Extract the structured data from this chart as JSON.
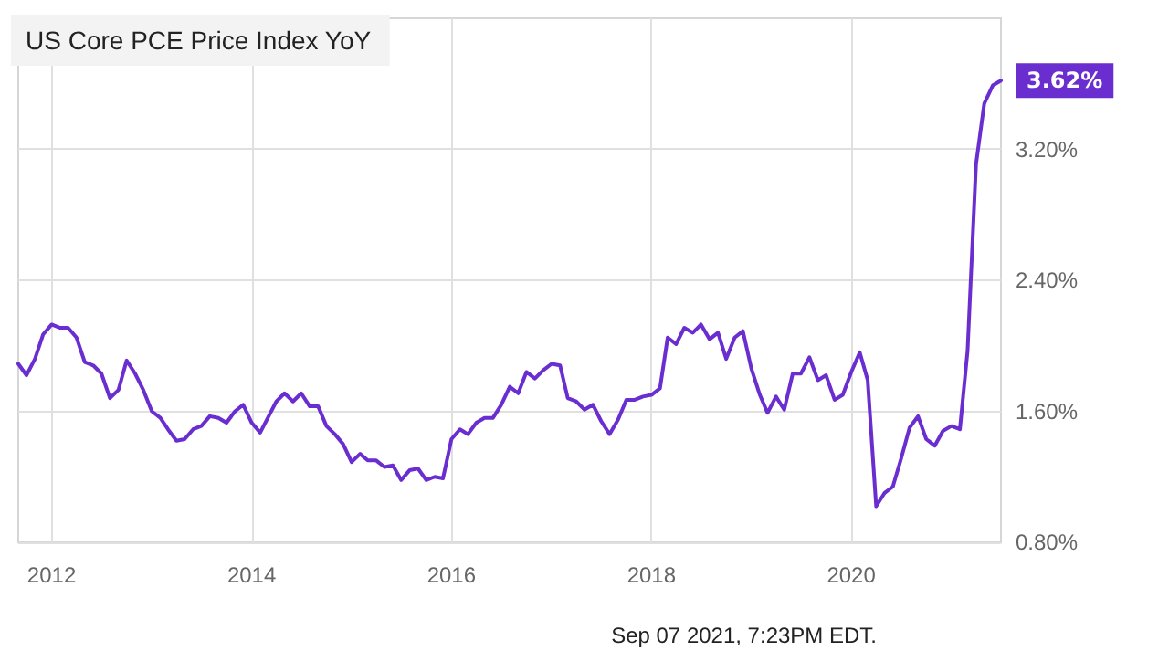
{
  "chart_data": {
    "type": "line",
    "title": "US Core PCE Price Index YoY",
    "annotations": [
      "Sep 07 2021, 7:23PM EDT."
    ],
    "x": [
      "2011-09",
      "2011-10",
      "2011-11",
      "2011-12",
      "2012-01",
      "2012-02",
      "2012-03",
      "2012-04",
      "2012-05",
      "2012-06",
      "2012-07",
      "2012-08",
      "2012-09",
      "2012-10",
      "2012-11",
      "2012-12",
      "2013-01",
      "2013-02",
      "2013-03",
      "2013-04",
      "2013-05",
      "2013-06",
      "2013-07",
      "2013-08",
      "2013-09",
      "2013-10",
      "2013-11",
      "2013-12",
      "2014-01",
      "2014-02",
      "2014-03",
      "2014-04",
      "2014-05",
      "2014-06",
      "2014-07",
      "2014-08",
      "2014-09",
      "2014-10",
      "2014-11",
      "2014-12",
      "2015-01",
      "2015-02",
      "2015-03",
      "2015-04",
      "2015-05",
      "2015-06",
      "2015-07",
      "2015-08",
      "2015-09",
      "2015-10",
      "2015-11",
      "2015-12",
      "2016-01",
      "2016-02",
      "2016-03",
      "2016-04",
      "2016-05",
      "2016-06",
      "2016-07",
      "2016-08",
      "2016-09",
      "2016-10",
      "2016-11",
      "2016-12",
      "2017-01",
      "2017-02",
      "2017-03",
      "2017-04",
      "2017-05",
      "2017-06",
      "2017-07",
      "2017-08",
      "2017-09",
      "2017-10",
      "2017-11",
      "2017-12",
      "2018-01",
      "2018-02",
      "2018-03",
      "2018-04",
      "2018-05",
      "2018-06",
      "2018-07",
      "2018-08",
      "2018-09",
      "2018-10",
      "2018-11",
      "2018-12",
      "2019-01",
      "2019-02",
      "2019-03",
      "2019-04",
      "2019-05",
      "2019-06",
      "2019-07",
      "2019-08",
      "2019-09",
      "2019-10",
      "2019-11",
      "2019-12",
      "2020-01",
      "2020-02",
      "2020-03",
      "2020-04",
      "2020-05",
      "2020-06",
      "2020-07",
      "2020-08",
      "2020-09",
      "2020-10",
      "2020-11",
      "2020-12",
      "2021-01",
      "2021-02",
      "2021-03",
      "2021-04",
      "2021-05",
      "2021-06",
      "2021-07"
    ],
    "series": [
      {
        "color": "#6a2ed0",
        "values": [
          1.89,
          1.82,
          1.92,
          2.07,
          2.13,
          2.11,
          2.11,
          2.05,
          1.9,
          1.88,
          1.83,
          1.68,
          1.73,
          1.91,
          1.83,
          1.73,
          1.6,
          1.56,
          1.49,
          1.42,
          1.43,
          1.49,
          1.51,
          1.57,
          1.56,
          1.53,
          1.6,
          1.64,
          1.53,
          1.47,
          1.56,
          1.66,
          1.71,
          1.66,
          1.71,
          1.63,
          1.63,
          1.51,
          1.46,
          1.4,
          1.29,
          1.34,
          1.3,
          1.3,
          1.26,
          1.27,
          1.18,
          1.24,
          1.25,
          1.18,
          1.2,
          1.19,
          1.43,
          1.49,
          1.46,
          1.53,
          1.56,
          1.56,
          1.64,
          1.75,
          1.71,
          1.84,
          1.8,
          1.85,
          1.89,
          1.88,
          1.68,
          1.66,
          1.61,
          1.64,
          1.54,
          1.46,
          1.55,
          1.67,
          1.67,
          1.69,
          1.7,
          1.74,
          2.05,
          2.01,
          2.11,
          2.08,
          2.13,
          2.04,
          2.08,
          1.92,
          2.05,
          2.09,
          1.86,
          1.7,
          1.59,
          1.69,
          1.61,
          1.83,
          1.83,
          1.93,
          1.79,
          1.82,
          1.67,
          1.7,
          1.84,
          1.96,
          1.79,
          1.02,
          1.1,
          1.14,
          1.31,
          1.5,
          1.57,
          1.43,
          1.39,
          1.48,
          1.51,
          1.49,
          1.97,
          3.11,
          3.48,
          3.59,
          3.62
        ],
        "value_labels": [
          null,
          null,
          null,
          null,
          null,
          null,
          null,
          null,
          null,
          null,
          null,
          null,
          null,
          null,
          null,
          null,
          null,
          null,
          null,
          null,
          null,
          null,
          null,
          null,
          null,
          null,
          null,
          null,
          null,
          null,
          null,
          null,
          null,
          null,
          null,
          null,
          null,
          null,
          null,
          null,
          null,
          null,
          null,
          null,
          null,
          null,
          null,
          null,
          null,
          null,
          null,
          null,
          null,
          null,
          null,
          null,
          null,
          null,
          null,
          null,
          null,
          null,
          null,
          null,
          null,
          null,
          null,
          null,
          null,
          null,
          null,
          null,
          null,
          null,
          null,
          null,
          null,
          null,
          null,
          null,
          null,
          null,
          null,
          null,
          null,
          null,
          null,
          null,
          null,
          null,
          null,
          null,
          null,
          null,
          null,
          null,
          null,
          null,
          null,
          null,
          null,
          null,
          null,
          null,
          null,
          null,
          null,
          null,
          null,
          null,
          null,
          null,
          null,
          null,
          null,
          null,
          null,
          null,
          "3.62%"
        ]
      }
    ],
    "xlim": [
      "2011-09",
      "2021-07"
    ],
    "xticks": [
      "2012",
      "2014",
      "2016",
      "2018",
      "2020"
    ],
    "ylim": [
      0.8,
      4.0
    ],
    "yticks": [
      {
        "value": 0.8,
        "label": "0.80%"
      },
      {
        "value": 1.6,
        "label": "1.60%"
      },
      {
        "value": 2.4,
        "label": "2.40%"
      },
      {
        "value": 3.2,
        "label": "3.20%"
      }
    ],
    "grid": true,
    "marker": "none",
    "line_style": "solid"
  }
}
